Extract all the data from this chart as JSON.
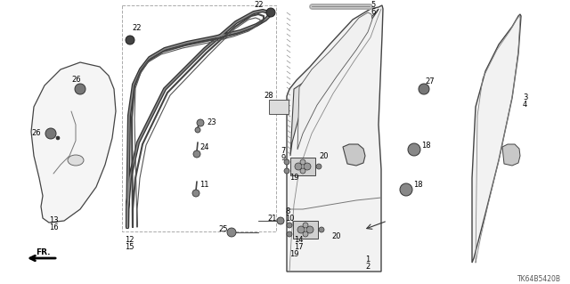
{
  "bg_color": "#ffffff",
  "diagram_code": "TK64B5420B",
  "lc": "#333333",
  "gray_fill": "#e8e8e8",
  "dark_gray": "#555555",
  "mid_gray": "#888888"
}
